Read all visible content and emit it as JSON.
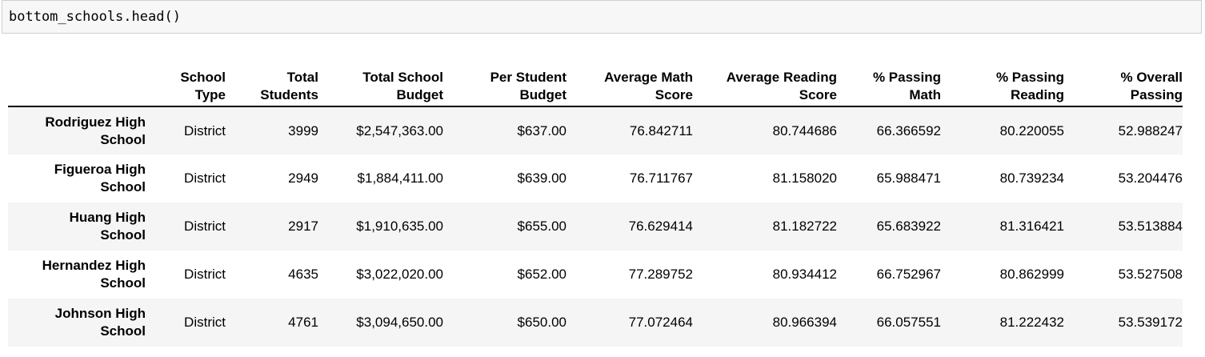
{
  "code": {
    "input": "bottom_schools.head()"
  },
  "table": {
    "columns": [
      "",
      "School\nType",
      "Total\nStudents",
      "Total School\nBudget",
      "Per Student\nBudget",
      "Average Math\nScore",
      "Average Reading\nScore",
      "% Passing\nMath",
      "% Passing\nReading",
      "% Overall\nPassing"
    ],
    "rows": [
      {
        "index": "Rodriguez High\nSchool",
        "values": [
          "District",
          "3999",
          "$2,547,363.00",
          "$637.00",
          "76.842711",
          "80.744686",
          "66.366592",
          "80.220055",
          "52.988247"
        ]
      },
      {
        "index": "Figueroa High\nSchool",
        "values": [
          "District",
          "2949",
          "$1,884,411.00",
          "$639.00",
          "76.711767",
          "81.158020",
          "65.988471",
          "80.739234",
          "53.204476"
        ]
      },
      {
        "index": "Huang High\nSchool",
        "values": [
          "District",
          "2917",
          "$1,910,635.00",
          "$655.00",
          "76.629414",
          "81.182722",
          "65.683922",
          "81.316421",
          "53.513884"
        ]
      },
      {
        "index": "Hernandez High\nSchool",
        "values": [
          "District",
          "4635",
          "$3,022,020.00",
          "$652.00",
          "77.289752",
          "80.934412",
          "66.752967",
          "80.862999",
          "53.527508"
        ]
      },
      {
        "index": "Johnson High\nSchool",
        "values": [
          "District",
          "4761",
          "$3,094,650.00",
          "$650.00",
          "77.072464",
          "80.966394",
          "66.057551",
          "81.222432",
          "53.539172"
        ]
      }
    ]
  }
}
